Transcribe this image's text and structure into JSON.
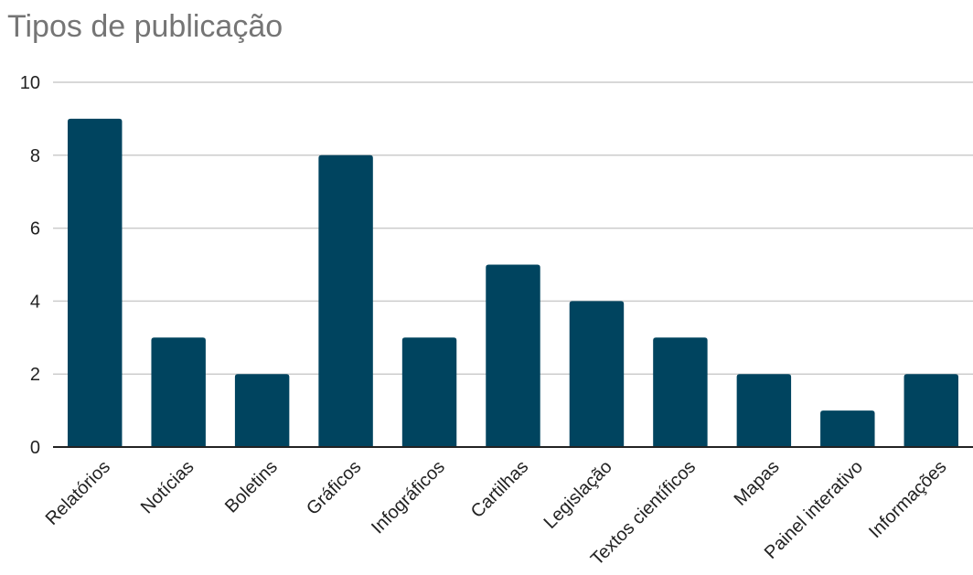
{
  "chart_data": {
    "type": "bar",
    "title": "Tipos de publicação",
    "categories": [
      "Relatórios",
      "Notícias",
      "Boletins",
      "Gráficos",
      "Infográficos",
      "Cartilhas",
      "Legislação",
      "Textos científicos",
      "Mapas",
      "Painel interativo",
      "Informações"
    ],
    "values": [
      9,
      3,
      2,
      8,
      3,
      5,
      4,
      3,
      2,
      1,
      2
    ],
    "xlabel": "",
    "ylabel": "",
    "ylim": [
      0,
      10
    ],
    "yticks": [
      0,
      2,
      4,
      6,
      8,
      10
    ],
    "grid": true,
    "legend": "none",
    "bar_color": "#00445f",
    "grid_color": "#cccccc",
    "axis_color": "#222222"
  }
}
